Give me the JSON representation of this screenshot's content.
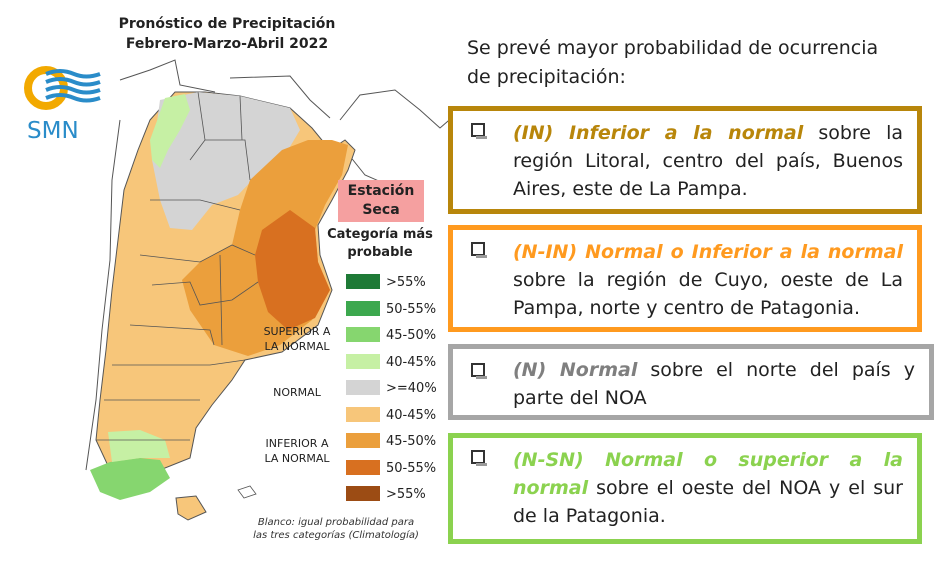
{
  "map": {
    "title_line1": "Pronóstico de Precipitación",
    "title_line2": "Febrero-Marzo-Abril 2022",
    "logo_text": "SMN",
    "season_badge": {
      "line1": "Estación",
      "line2": "Seca"
    },
    "legend_title": {
      "line1": "Categoría más",
      "line2": "probable"
    },
    "legend_groups": {
      "superior": {
        "line1": "SUPERIOR A",
        "line2": "LA NORMAL"
      },
      "normal": "NORMAL",
      "inferior": {
        "line1": "INFERIOR A",
        "line2": "LA NORMAL"
      }
    },
    "legend": [
      {
        "label": ">55%",
        "color": "#1e7a36"
      },
      {
        "label": "50-55%",
        "color": "#3ca84e"
      },
      {
        "label": "45-50%",
        "color": "#86d66f"
      },
      {
        "label": "40-45%",
        "color": "#c6f0a4"
      },
      {
        "label": ">=40%",
        "color": "#d4d4d4"
      },
      {
        "label": "40-45%",
        "color": "#f7c67a"
      },
      {
        "label": "45-50%",
        "color": "#eb9f3c"
      },
      {
        "label": "50-55%",
        "color": "#d87020"
      },
      {
        "label": ">55%",
        "color": "#9c4c14"
      }
    ],
    "footnote_line1": "Blanco: igual probabilidad para",
    "footnote_line2": "las tres categorías (Climatología)"
  },
  "summary": {
    "intro": "Se prevé mayor probabilidad de ocurrencia de precipitación:",
    "categories": [
      {
        "code": "(IN) Inferior a la normal",
        "text": " sobre la región Litoral, centro del país, Buenos Aires, este de La Pampa.",
        "border_color": "#b8860b",
        "code_color": "#b8860b"
      },
      {
        "code": "(N-IN) Normal o Inferior a la normal",
        "text": " sobre la región de Cuyo, oeste de La Pampa, norte y centro de Patagonia.",
        "border_color": "#ff9a1f",
        "code_color": "#ff9a1f"
      },
      {
        "code": "(N) Normal",
        "text": " sobre el norte del país y parte del NOA",
        "border_color": "#a6a6a6",
        "code_color": "#7f7f7f"
      },
      {
        "code": "(N-SN) Normal o superior a la normal",
        "text": " sobre el oeste del NOA y el sur de la Patagonia.",
        "border_color": "#8bd24f",
        "code_color": "#8bd24f"
      }
    ]
  }
}
